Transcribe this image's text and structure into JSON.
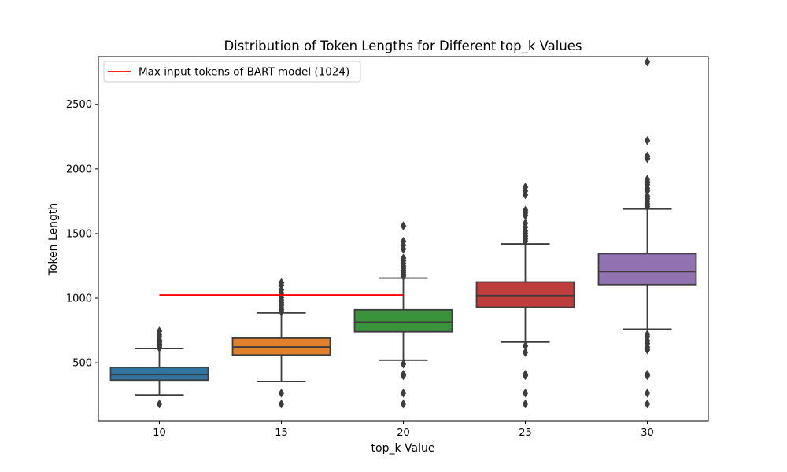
{
  "chart_data": {
    "type": "box",
    "title": "Distribution of Token Lengths for Different top_k Values",
    "xlabel": "top_k Value",
    "ylabel": "Token Length",
    "ylim": [
      50,
      2870
    ],
    "yticks": [
      500,
      1000,
      1500,
      2000,
      2500
    ],
    "grid": false,
    "legend_position": "top-left",
    "categories": [
      "10",
      "15",
      "20",
      "25",
      "30"
    ],
    "boxes": [
      {
        "category": "10",
        "color": "#3274a1",
        "q1": 365,
        "median": 408,
        "q3": 465,
        "whisker_low": 250,
        "whisker_high": 610,
        "outliers": [
          180,
          615,
          630,
          645,
          660,
          675,
          700,
          720,
          745
        ]
      },
      {
        "category": "15",
        "color": "#e1812c",
        "q1": 560,
        "median": 622,
        "q3": 690,
        "whisker_low": 355,
        "whisker_high": 885,
        "outliers": [
          180,
          265,
          895,
          910,
          925,
          945,
          965,
          985,
          1005,
          1025,
          1040,
          1065,
          1100,
          1120
        ]
      },
      {
        "category": "20",
        "color": "#3a923a",
        "q1": 740,
        "median": 815,
        "q3": 910,
        "whisker_low": 520,
        "whisker_high": 1155,
        "outliers": [
          180,
          265,
          400,
          410,
          490,
          1170,
          1185,
          1200,
          1215,
          1230,
          1250,
          1270,
          1290,
          1310,
          1380,
          1410,
          1440,
          1560
        ]
      },
      {
        "category": "25",
        "color": "#c03d3e",
        "q1": 930,
        "median": 1020,
        "q3": 1125,
        "whisker_low": 660,
        "whisker_high": 1420,
        "outliers": [
          180,
          265,
          400,
          410,
          580,
          630,
          1440,
          1460,
          1480,
          1500,
          1520,
          1550,
          1580,
          1640,
          1660,
          1680,
          1800,
          1830,
          1860
        ]
      },
      {
        "category": "30",
        "color": "#9372b2",
        "q1": 1105,
        "median": 1205,
        "q3": 1345,
        "whisker_low": 760,
        "whisker_high": 1690,
        "outliers": [
          180,
          265,
          400,
          410,
          600,
          620,
          650,
          670,
          700,
          720,
          1710,
          1730,
          1750,
          1770,
          1790,
          1830,
          1850,
          1880,
          1900,
          1920,
          2080,
          2100,
          2220,
          2830
        ]
      }
    ],
    "reference_line": {
      "label": "Max input tokens of BART model (1024)",
      "y": 1024,
      "x_start": "10",
      "x_end": "20",
      "color": "#ff0000"
    }
  }
}
